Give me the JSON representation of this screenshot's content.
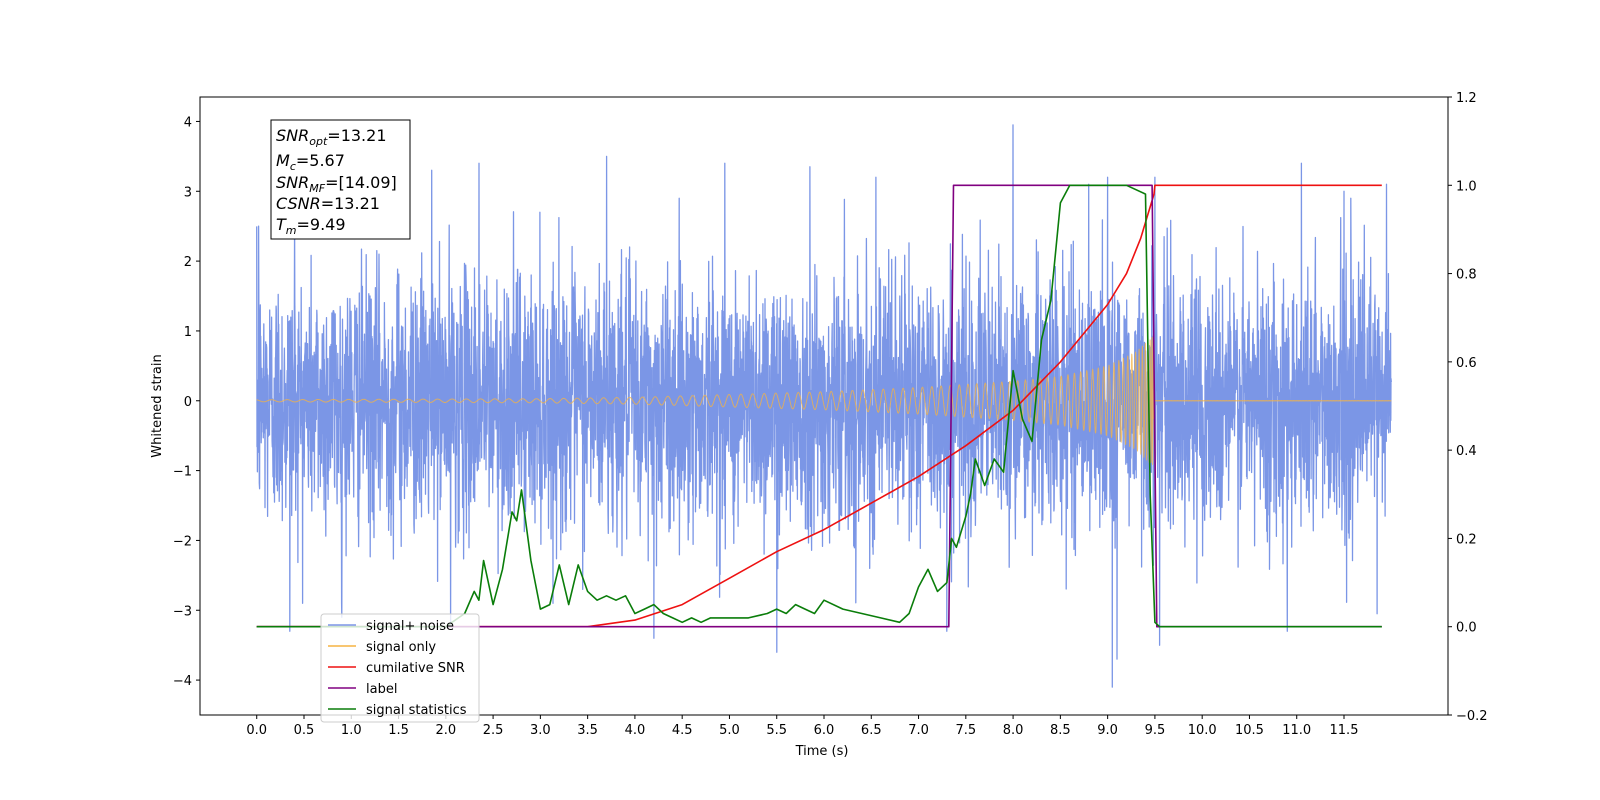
{
  "chart_data": {
    "type": "line",
    "title": "",
    "xlabel": "Time (s)",
    "ylabel": "Whitened strain",
    "xlim": [
      -0.6,
      12.6
    ],
    "ylim": [
      -4.5,
      4.35
    ],
    "y2lim": [
      -0.2,
      1.2
    ],
    "x_ticks": [
      0.0,
      0.5,
      1.0,
      1.5,
      2.0,
      2.5,
      3.0,
      3.5,
      4.0,
      4.5,
      5.0,
      5.5,
      6.0,
      6.5,
      7.0,
      7.5,
      8.0,
      8.5,
      9.0,
      9.5,
      10.0,
      10.5,
      11.0,
      11.5
    ],
    "x_tick_labels": [
      "0.0",
      "0.5",
      "1.0",
      "1.5",
      "2.0",
      "2.5",
      "3.0",
      "3.5",
      "4.0",
      "4.5",
      "5.0",
      "5.5",
      "6.0",
      "6.5",
      "7.0",
      "7.5",
      "8.0",
      "8.5",
      "9.0",
      "9.5",
      "10.0",
      "10.5",
      "11.0",
      "11.5"
    ],
    "y_ticks": [
      -4,
      -3,
      -2,
      -1,
      0,
      1,
      2,
      3,
      4
    ],
    "y_tick_labels": [
      "−4",
      "−3",
      "−2",
      "−1",
      "0",
      "1",
      "2",
      "3",
      "4"
    ],
    "y2_ticks": [
      -0.2,
      0.0,
      0.2,
      0.4,
      0.6,
      0.8,
      1.0,
      1.2
    ],
    "y2_tick_labels": [
      "−0.2",
      "0.0",
      "0.2",
      "0.4",
      "0.6",
      "0.8",
      "1.0",
      "1.2"
    ],
    "grid": false,
    "legend_position": "bottom-left",
    "annotation": {
      "lines": [
        {
          "var": "SNR",
          "sub": "opt",
          "value": "=13.21"
        },
        {
          "var": "M",
          "sub": "c",
          "value": "=5.67"
        },
        {
          "var": "SNR",
          "sub": "MF",
          "value": "=[14.09]"
        },
        {
          "var": "CSNR",
          "sub": "",
          "value": "=13.21"
        },
        {
          "var": "T",
          "sub": "m",
          "value": "=9.49"
        }
      ]
    },
    "series": [
      {
        "name": "signal+ noise",
        "axis": "left",
        "color": "#7b96e6",
        "kind": "noise",
        "x_range": [
          0.0,
          12.0
        ],
        "noise_std": 0.9,
        "extremes": [
          [
            0.02,
            2.5
          ],
          [
            0.35,
            -3.3
          ],
          [
            0.4,
            2.6
          ],
          [
            0.9,
            -3.1
          ],
          [
            1.85,
            3.3
          ],
          [
            2.05,
            -3.2
          ],
          [
            2.35,
            3.4
          ],
          [
            3.7,
            3.5
          ],
          [
            4.2,
            -3.4
          ],
          [
            4.95,
            3.4
          ],
          [
            5.5,
            -3.6
          ],
          [
            5.85,
            3.35
          ],
          [
            6.55,
            3.2
          ],
          [
            7.3,
            -3.3
          ],
          [
            8.0,
            3.95
          ],
          [
            8.8,
            3.1
          ],
          [
            9.0,
            3.2
          ],
          [
            9.05,
            -4.1
          ],
          [
            9.1,
            -3.7
          ],
          [
            9.5,
            3.2
          ],
          [
            9.55,
            -3.5
          ],
          [
            10.9,
            -3.3
          ],
          [
            11.05,
            3.4
          ],
          [
            11.5,
            3.0
          ],
          [
            11.85,
            -3.05
          ],
          [
            11.95,
            3.1
          ]
        ]
      },
      {
        "name": "signal only",
        "axis": "left",
        "color": "#f5b342",
        "kind": "chirp",
        "coalescence": 9.49,
        "amplitude_at_points": [
          [
            0.0,
            0.015
          ],
          [
            3.0,
            0.03
          ],
          [
            4.0,
            0.05
          ],
          [
            5.0,
            0.09
          ],
          [
            6.0,
            0.13
          ],
          [
            7.0,
            0.19
          ],
          [
            8.0,
            0.28
          ],
          [
            8.5,
            0.35
          ],
          [
            9.0,
            0.5
          ],
          [
            9.3,
            0.7
          ],
          [
            9.49,
            0.95
          ]
        ]
      },
      {
        "name": "cumilative SNR",
        "axis": "right",
        "color": "#ee1111",
        "x": [
          0.0,
          3.5,
          4.0,
          4.5,
          5.0,
          5.5,
          6.0,
          6.5,
          7.0,
          7.5,
          8.0,
          8.5,
          9.0,
          9.2,
          9.35,
          9.49,
          9.5,
          11.9
        ],
        "values": [
          0.0,
          0.0,
          0.015,
          0.05,
          0.11,
          0.17,
          0.22,
          0.28,
          0.34,
          0.41,
          0.49,
          0.6,
          0.73,
          0.8,
          0.88,
          0.98,
          1.0,
          1.0
        ]
      },
      {
        "name": "label",
        "axis": "right",
        "color": "#800080",
        "x": [
          0.0,
          7.32,
          7.37,
          9.47,
          9.52,
          11.9
        ],
        "values": [
          0.0,
          0.0,
          1.0,
          1.0,
          0.0,
          0.0
        ]
      },
      {
        "name": "signal statistics",
        "axis": "right",
        "color": "#0a7d0a",
        "x": [
          0.0,
          2.0,
          2.2,
          2.3,
          2.35,
          2.4,
          2.5,
          2.6,
          2.7,
          2.75,
          2.8,
          2.9,
          3.0,
          3.1,
          3.2,
          3.3,
          3.4,
          3.5,
          3.6,
          3.7,
          3.8,
          3.9,
          4.0,
          4.1,
          4.2,
          4.3,
          4.4,
          4.5,
          4.6,
          4.7,
          4.8,
          5.0,
          5.2,
          5.4,
          5.5,
          5.6,
          5.7,
          5.8,
          5.9,
          6.0,
          6.2,
          6.4,
          6.6,
          6.8,
          6.9,
          7.0,
          7.1,
          7.2,
          7.3,
          7.35,
          7.4,
          7.5,
          7.55,
          7.6,
          7.7,
          7.8,
          7.9,
          8.0,
          8.1,
          8.2,
          8.3,
          8.4,
          8.5,
          8.6,
          8.7,
          8.8,
          9.0,
          9.2,
          9.4,
          9.45,
          9.5,
          9.55,
          9.7,
          9.9,
          10.0,
          11.9
        ],
        "values": [
          0.0,
          0.0,
          0.03,
          0.08,
          0.06,
          0.15,
          0.05,
          0.13,
          0.26,
          0.24,
          0.31,
          0.15,
          0.04,
          0.05,
          0.14,
          0.05,
          0.14,
          0.08,
          0.06,
          0.07,
          0.06,
          0.07,
          0.03,
          0.04,
          0.05,
          0.03,
          0.02,
          0.01,
          0.02,
          0.01,
          0.02,
          0.02,
          0.02,
          0.03,
          0.04,
          0.03,
          0.05,
          0.04,
          0.03,
          0.06,
          0.04,
          0.03,
          0.02,
          0.01,
          0.03,
          0.09,
          0.13,
          0.08,
          0.1,
          0.2,
          0.18,
          0.25,
          0.3,
          0.38,
          0.32,
          0.38,
          0.35,
          0.58,
          0.47,
          0.42,
          0.65,
          0.74,
          0.96,
          1.0,
          1.0,
          1.0,
          1.0,
          1.0,
          0.98,
          0.3,
          0.01,
          0.0,
          0.0,
          0.0,
          0.0,
          0.0
        ]
      }
    ],
    "legend_items": [
      {
        "label": "signal+ noise",
        "color": "#7b96e6"
      },
      {
        "label": "signal only",
        "color": "#f5b342"
      },
      {
        "label": "cumilative SNR",
        "color": "#ee1111"
      },
      {
        "label": "label",
        "color": "#800080"
      },
      {
        "label": "signal statistics",
        "color": "#0a7d0a"
      }
    ]
  }
}
